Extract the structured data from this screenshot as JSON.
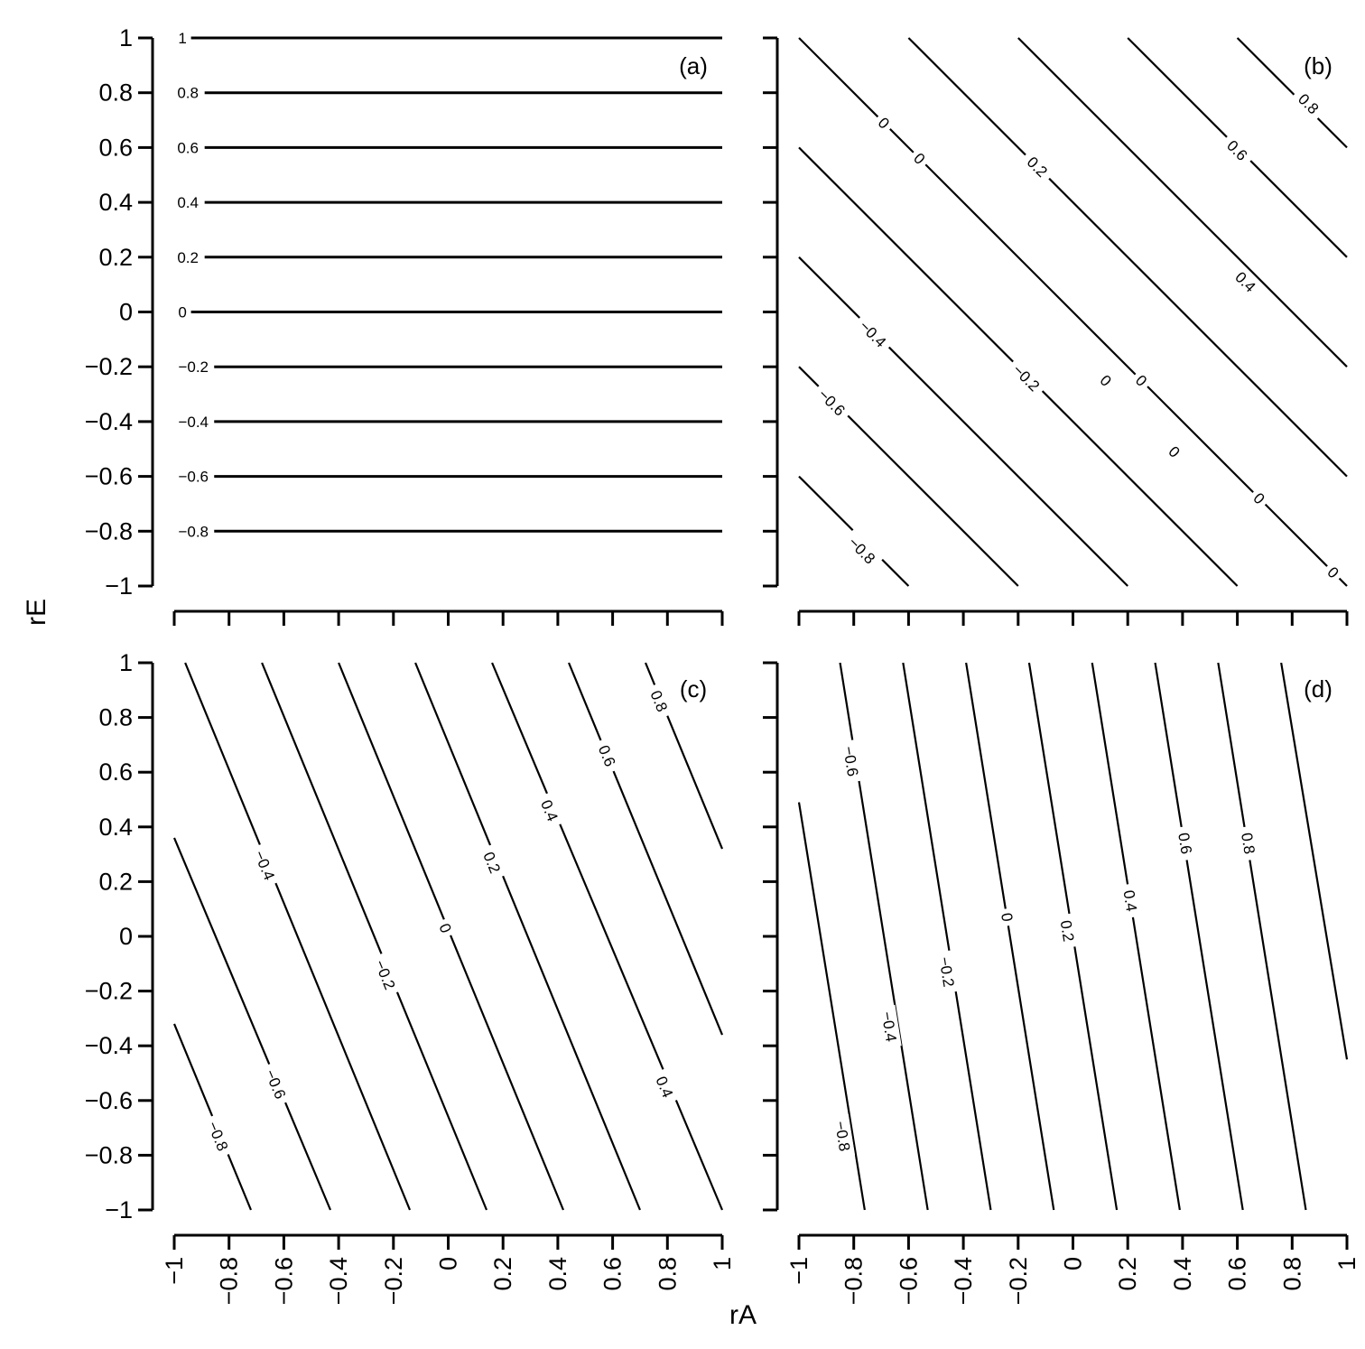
{
  "chart_data": {
    "type": "contour",
    "xlabel": "rA",
    "ylabel": "rE",
    "xlim": [
      -1,
      1
    ],
    "ylim": [
      -1,
      1
    ],
    "x_tick_values": [
      -1,
      -0.8,
      -0.6,
      -0.4,
      -0.2,
      0,
      0.2,
      0.4,
      0.6,
      0.8,
      1
    ],
    "y_tick_values": [
      -1,
      -0.8,
      -0.6,
      -0.4,
      -0.2,
      0,
      0.2,
      0.4,
      0.6,
      0.8,
      1
    ],
    "x_tick_labels": [
      "−1",
      "−0.8",
      "−0.6",
      "−0.4",
      "−0.2",
      "0",
      "0.2",
      "0.4",
      "0.6",
      "0.8",
      "1"
    ],
    "y_tick_labels": [
      "1",
      "0.8",
      "0.6",
      "0.4",
      "0.2",
      "0",
      "−0.2",
      "−0.4",
      "−0.6",
      "−0.8",
      "−1"
    ],
    "grid": false,
    "panels": [
      {
        "tag": "(a)",
        "y_axis_labels": true,
        "x_axis_labels": false,
        "contours": [
          {
            "label": "1",
            "level": 1,
            "points": [
              [
                -1,
                1
              ],
              [
                1,
                1
              ]
            ],
            "label_at": [
              -0.97,
              1
            ]
          },
          {
            "label": "0.8",
            "level": 0.8,
            "points": [
              [
                -1,
                0.8
              ],
              [
                1,
                0.8
              ]
            ],
            "label_at": [
              -0.95,
              0.8
            ]
          },
          {
            "label": "0.6",
            "level": 0.6,
            "points": [
              [
                -1,
                0.6
              ],
              [
                1,
                0.6
              ]
            ],
            "label_at": [
              -0.95,
              0.6
            ]
          },
          {
            "label": "0.4",
            "level": 0.4,
            "points": [
              [
                -1,
                0.4
              ],
              [
                1,
                0.4
              ]
            ],
            "label_at": [
              -0.95,
              0.4
            ]
          },
          {
            "label": "0.2",
            "level": 0.2,
            "points": [
              [
                -1,
                0.2
              ],
              [
                1,
                0.2
              ]
            ],
            "label_at": [
              -0.95,
              0.2
            ]
          },
          {
            "label": "0",
            "level": 0,
            "points": [
              [
                -1,
                0
              ],
              [
                1,
                0
              ]
            ],
            "label_at": [
              -0.97,
              0
            ]
          },
          {
            "label": "−0.2",
            "level": -0.2,
            "points": [
              [
                -1,
                -0.2
              ],
              [
                1,
                -0.2
              ]
            ],
            "label_at": [
              -0.93,
              -0.2
            ]
          },
          {
            "label": "−0.4",
            "level": -0.4,
            "points": [
              [
                -1,
                -0.4
              ],
              [
                1,
                -0.4
              ]
            ],
            "label_at": [
              -0.93,
              -0.4
            ]
          },
          {
            "label": "−0.6",
            "level": -0.6,
            "points": [
              [
                -1,
                -0.6
              ],
              [
                1,
                -0.6
              ]
            ],
            "label_at": [
              -0.93,
              -0.6
            ]
          },
          {
            "label": "−0.8",
            "level": -0.8,
            "points": [
              [
                -1,
                -0.8
              ],
              [
                1,
                -0.8
              ]
            ],
            "label_at": [
              -0.93,
              -0.8
            ]
          }
        ]
      },
      {
        "tag": "(b)",
        "y_axis_labels": false,
        "x_axis_labels": false,
        "contours": [
          {
            "label": "0.8",
            "level": 0.8,
            "points": [
              [
                0.6,
                1
              ],
              [
                1,
                0.6
              ]
            ],
            "label_at": [
              0.86,
              0.76
            ]
          },
          {
            "label": "0.6",
            "level": 0.6,
            "points": [
              [
                0.2,
                1
              ],
              [
                1,
                0.2
              ]
            ],
            "label_at": [
              0.6,
              0.59
            ]
          },
          {
            "label": "0.4",
            "level": 0.4,
            "points": [
              [
                -0.2,
                1
              ],
              [
                1,
                -0.2
              ]
            ],
            "label_at": [
              0.63,
              0.11
            ]
          },
          {
            "label": "0.2",
            "level": 0.2,
            "points": [
              [
                -0.6,
                1
              ],
              [
                1,
                -0.6
              ]
            ],
            "label_at": [
              -0.13,
              0.53
            ]
          },
          {
            "label": "0",
            "level": 0,
            "points": [
              [
                -1,
                1
              ],
              [
                1,
                -1
              ]
            ],
            "label_at": [
              -0.69,
              0.69
            ]
          },
          {
            "label": "0",
            "level": 0,
            "points": [
              [
                -1,
                1
              ],
              [
                1,
                -1
              ]
            ],
            "label_at": [
              -0.56,
              0.56
            ]
          },
          {
            "label": "0",
            "level": 0,
            "points": [
              [
                -1,
                1
              ],
              [
                1,
                -1
              ]
            ],
            "label_at": [
              0.25,
              -0.25
            ]
          },
          {
            "label": "0",
            "level": 0,
            "points": [
              [
                -1,
                1
              ],
              [
                1,
                -1
              ]
            ],
            "label_at": [
              0.68,
              -0.68
            ]
          },
          {
            "label": "0",
            "level": 0,
            "points": [
              [
                -1,
                1
              ],
              [
                1,
                -1
              ]
            ],
            "label_at": [
              0.95,
              -0.95
            ]
          },
          {
            "label": "0",
            "level": 0,
            "points": [
              [
                -1,
                0.6
              ],
              [
                0.6,
                -1
              ]
            ],
            "label_at": [
              0.12,
              -0.25
            ]
          },
          {
            "label": "0",
            "level": 0,
            "points": [
              [
                -1,
                0.6
              ],
              [
                0.6,
                -1
              ]
            ],
            "label_at": [
              0.37,
              -0.51
            ]
          },
          {
            "label": "−0.2",
            "level": -0.2,
            "points": [
              [
                -1,
                0.6
              ],
              [
                0.6,
                -1
              ]
            ],
            "label_at": [
              -0.17,
              -0.24
            ]
          },
          {
            "label": "−0.4",
            "level": -0.4,
            "points": [
              [
                -1,
                0.2
              ],
              [
                0.2,
                -1
              ]
            ],
            "label_at": [
              -0.73,
              -0.08
            ]
          },
          {
            "label": "−0.6",
            "level": -0.6,
            "points": [
              [
                -1,
                -0.2
              ],
              [
                -0.2,
                -1
              ]
            ],
            "label_at": [
              -0.88,
              -0.33
            ]
          },
          {
            "label": "−0.8",
            "level": -0.8,
            "points": [
              [
                -1,
                -0.6
              ],
              [
                -0.6,
                -1
              ]
            ],
            "label_at": [
              -0.77,
              -0.87
            ]
          }
        ]
      },
      {
        "tag": "(c)",
        "y_axis_labels": true,
        "x_axis_labels": true,
        "contours": [
          {
            "label": "0.8",
            "level": 0.8,
            "points": [
              [
                0.72,
                1
              ],
              [
                1,
                0.32
              ]
            ],
            "label_at": [
              0.77,
              0.86
            ]
          },
          {
            "label": "0.6",
            "level": 0.6,
            "points": [
              [
                0.44,
                1
              ],
              [
                1,
                -0.36
              ]
            ],
            "label_at": [
              0.58,
              0.66
            ]
          },
          {
            "label": "0.4",
            "level": 0.4,
            "points": [
              [
                0.16,
                1
              ],
              [
                1,
                -1
              ]
            ],
            "label_at": [
              0.37,
              0.46
            ]
          },
          {
            "label": "0.4",
            "level": 0.4,
            "points": [
              [
                0.16,
                1
              ],
              [
                1,
                -1
              ]
            ],
            "label_at": [
              0.79,
              -0.55
            ]
          },
          {
            "label": "0.2",
            "level": 0.2,
            "points": [
              [
                -0.12,
                1
              ],
              [
                0.7,
                -1
              ]
            ],
            "label_at": [
              0.16,
              0.27
            ]
          },
          {
            "label": "0",
            "level": 0,
            "points": [
              [
                -0.4,
                1
              ],
              [
                0.42,
                -1
              ]
            ],
            "label_at": [
              -0.01,
              0.03
            ]
          },
          {
            "label": "−0.2",
            "level": -0.2,
            "points": [
              [
                -0.68,
                1
              ],
              [
                0.14,
                -1
              ]
            ],
            "label_at": [
              -0.23,
              -0.14
            ]
          },
          {
            "label": "−0.4",
            "level": -0.4,
            "points": [
              [
                -0.96,
                1
              ],
              [
                -0.14,
                -1
              ]
            ],
            "label_at": [
              -0.67,
              0.26
            ]
          },
          {
            "label": "−0.6",
            "level": -0.6,
            "points": [
              [
                -1,
                0.36
              ],
              [
                -0.43,
                -1
              ]
            ],
            "label_at": [
              -0.63,
              -0.54
            ]
          },
          {
            "label": "−0.8",
            "level": -0.8,
            "points": [
              [
                -1,
                -0.32
              ],
              [
                -0.72,
                -1
              ]
            ],
            "label_at": [
              -0.84,
              -0.73
            ]
          }
        ]
      },
      {
        "tag": "(d)",
        "y_axis_labels": false,
        "x_axis_labels": true,
        "contours": [
          {
            "label": "0.8",
            "level": 0.8,
            "points": [
              [
                0.76,
                1
              ],
              [
                1,
                -0.45
              ]
            ]
          },
          {
            "label": "0.8",
            "level": 0.8,
            "points": [
              [
                0.53,
                1
              ],
              [
                0.85,
                -1
              ]
            ],
            "label_at": [
              0.64,
              0.34
            ]
          },
          {
            "label": "0.6",
            "level": 0.6,
            "points": [
              [
                0.3,
                1
              ],
              [
                0.62,
                -1
              ]
            ],
            "label_at": [
              0.41,
              0.34
            ]
          },
          {
            "label": "0.4",
            "level": 0.4,
            "points": [
              [
                0.07,
                1
              ],
              [
                0.39,
                -1
              ]
            ],
            "label_at": [
              0.21,
              0.13
            ]
          },
          {
            "label": "0.2",
            "level": 0.2,
            "points": [
              [
                -0.16,
                1
              ],
              [
                0.16,
                -1
              ]
            ],
            "label_at": [
              -0.02,
              0.02
            ]
          },
          {
            "label": "0",
            "level": 0,
            "points": [
              [
                -0.39,
                1
              ],
              [
                -0.07,
                -1
              ]
            ],
            "label_at": [
              -0.24,
              0.07
            ]
          },
          {
            "label": "−0.2",
            "level": -0.2,
            "points": [
              [
                -0.62,
                1
              ],
              [
                -0.3,
                -1
              ]
            ],
            "label_at": [
              -0.46,
              -0.13
            ]
          },
          {
            "label": "−0.4",
            "level": -0.4,
            "points": [
              [
                -0.85,
                1
              ],
              [
                -0.53,
                -1
              ]
            ],
            "label_at": [
              -0.67,
              -0.33
            ]
          },
          {
            "label": "−0.6",
            "level": -0.6,
            "points": [
              [
                -1,
                0.49
              ],
              [
                -0.76,
                -1
              ]
            ],
            "label_at": [
              -0.81,
              0.64
            ]
          },
          {
            "label": "−0.8",
            "level": -0.8,
            "points": [
              [
                -1,
                0.49
              ],
              [
                -0.76,
                -1
              ]
            ],
            "label_at": [
              -0.84,
              -0.73
            ]
          }
        ]
      }
    ]
  }
}
